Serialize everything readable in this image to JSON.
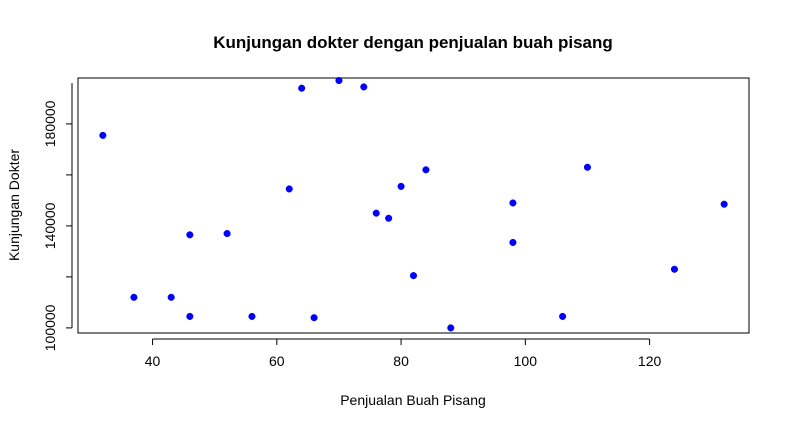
{
  "chart_data": {
    "type": "scatter",
    "title": "Kunjungan dokter dengan penjualan buah pisang",
    "xlabel": "Penjualan Buah Pisang",
    "ylabel": "Kunjungan Dokter",
    "xlim": [
      28,
      136
    ],
    "ylim": [
      98000,
      198000
    ],
    "x_ticks": [
      40,
      60,
      80,
      100,
      120
    ],
    "x_tick_labels": [
      "40",
      "60",
      "80",
      "100",
      "120"
    ],
    "y_ticks": [
      100000,
      140000,
      180000
    ],
    "y_tick_labels": [
      "100000",
      "140000",
      "180000"
    ],
    "grid": false,
    "legend": "none",
    "point_color": "#0000ff",
    "points": [
      {
        "x": 32,
        "y": 175500
      },
      {
        "x": 37,
        "y": 112000
      },
      {
        "x": 43,
        "y": 112000
      },
      {
        "x": 46,
        "y": 136500
      },
      {
        "x": 46,
        "y": 104500
      },
      {
        "x": 52,
        "y": 137000
      },
      {
        "x": 56,
        "y": 104500
      },
      {
        "x": 62,
        "y": 154500
      },
      {
        "x": 64,
        "y": 194000
      },
      {
        "x": 66,
        "y": 104000
      },
      {
        "x": 70,
        "y": 197000
      },
      {
        "x": 74,
        "y": 194500
      },
      {
        "x": 76,
        "y": 145000
      },
      {
        "x": 78,
        "y": 143000
      },
      {
        "x": 80,
        "y": 155500
      },
      {
        "x": 82,
        "y": 120500
      },
      {
        "x": 84,
        "y": 162000
      },
      {
        "x": 88,
        "y": 100000
      },
      {
        "x": 98,
        "y": 149000
      },
      {
        "x": 98,
        "y": 133500
      },
      {
        "x": 106,
        "y": 104500
      },
      {
        "x": 110,
        "y": 163000
      },
      {
        "x": 124,
        "y": 123000
      },
      {
        "x": 132,
        "y": 148500
      }
    ]
  }
}
